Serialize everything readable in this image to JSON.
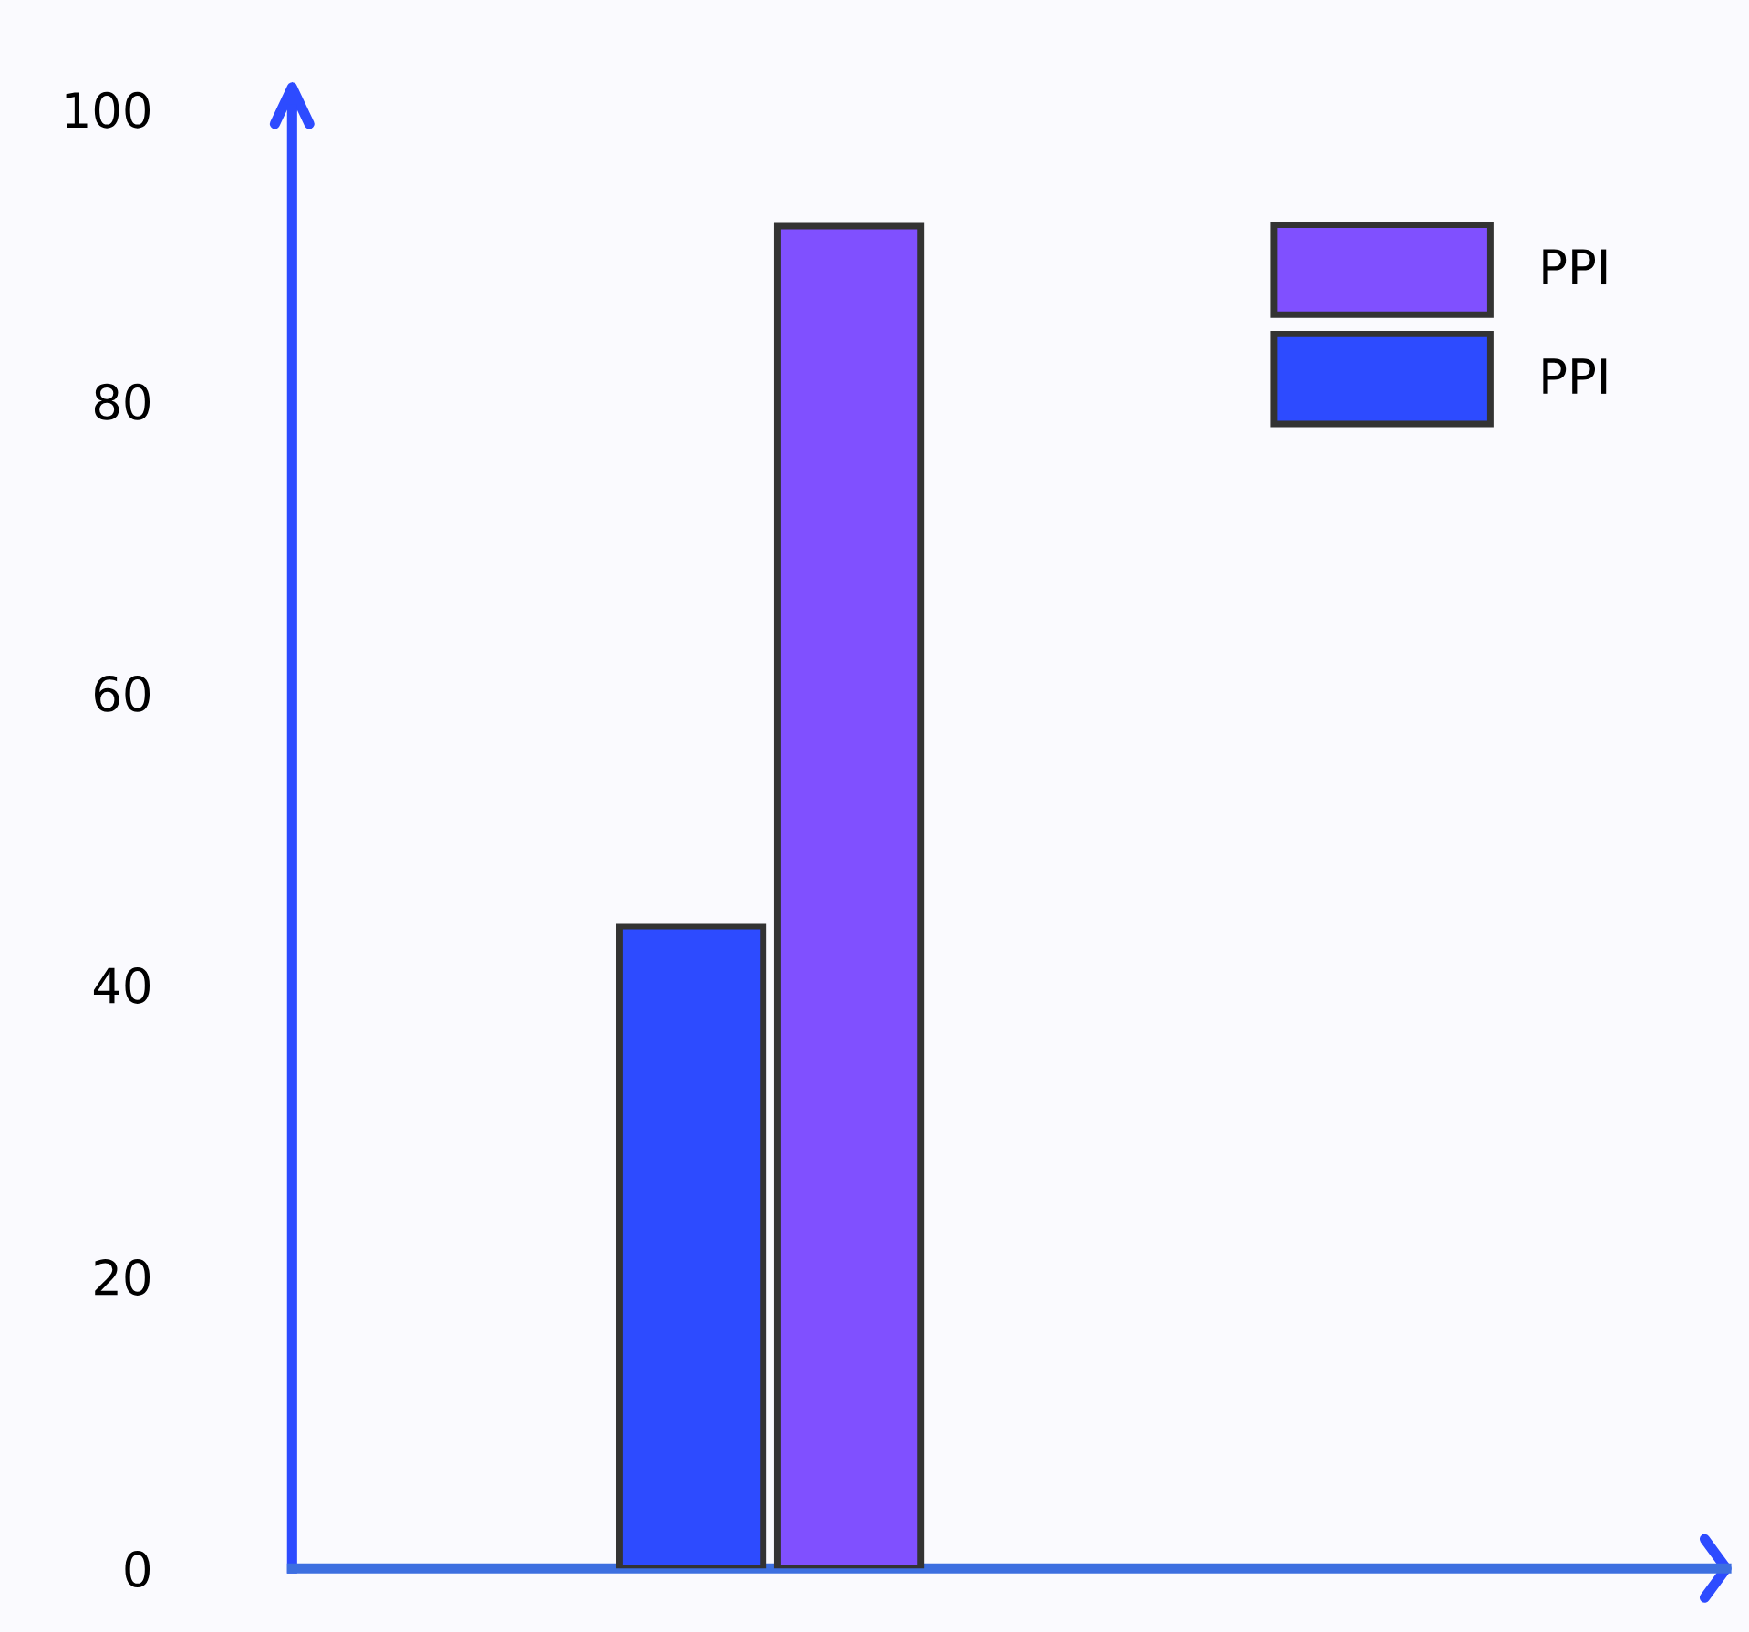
{
  "chart_data": {
    "type": "bar",
    "categories": [
      null
    ],
    "series": [
      {
        "name": "PPI",
        "color": "#2d4bff",
        "values": [
          44
        ]
      },
      {
        "name": "PPI",
        "color": "#8050ff",
        "values": [
          92
        ]
      }
    ],
    "ylim": [
      0,
      100
    ],
    "yticks": [
      0,
      20,
      40,
      60,
      80,
      100
    ],
    "grid": false,
    "legend": "top right"
  }
}
